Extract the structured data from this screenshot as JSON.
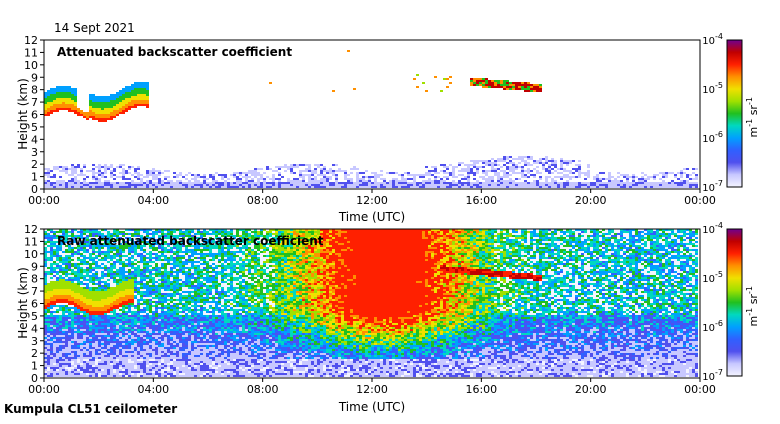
{
  "date_label": "14 Sept 2021",
  "footer": "Kumpula CL51 ceilometer",
  "colors": {
    "scale": [
      "#f4f4ff",
      "#c8c8ff",
      "#5050ee",
      "#3060ff",
      "#00a0ff",
      "#00d8c0",
      "#20c020",
      "#a0e000",
      "#f0e000",
      "#ff9000",
      "#ff2000",
      "#c00000",
      "#700090"
    ],
    "frame": "#000000",
    "background": "#ffffff"
  },
  "chart_data": [
    {
      "type": "heatmap",
      "title": "Attenuated backscatter coefficient",
      "xlabel": "Time (UTC)",
      "ylabel": "Height (km)",
      "x_ticks": [
        "00:00",
        "04:00",
        "08:00",
        "12:00",
        "16:00",
        "20:00",
        "00:00"
      ],
      "xlim_hours": [
        0,
        24
      ],
      "y_ticks": [
        0,
        1,
        2,
        3,
        4,
        5,
        6,
        7,
        8,
        9,
        10,
        11,
        12
      ],
      "ylim_km": [
        0,
        12
      ],
      "colorbar": {
        "labels": [
          {
            "base": "10",
            "exp": "-4"
          },
          {
            "base": "10",
            "exp": "-5"
          },
          {
            "base": "10",
            "exp": "-6"
          },
          {
            "base": "10",
            "exp": "-7"
          }
        ],
        "unit": {
          "m": "m",
          "m_exp": "-1",
          "sr": "sr",
          "sr_exp": "-1"
        },
        "range_log10": [
          -7,
          -4
        ]
      },
      "features": [
        {
          "name": "lower cloud layer",
          "start_h": 0.0,
          "end_h": 3.8,
          "base_km": 5.6,
          "top_km": 7.8
        },
        {
          "name": "upper cloud layer",
          "start_h": 14.0,
          "end_h": 18.2,
          "base_km": 7.9,
          "top_km": 8.8
        },
        {
          "name": "boundary layer",
          "start_h": 0.0,
          "end_h": 24.0,
          "top_km": 2.0
        }
      ]
    },
    {
      "type": "heatmap",
      "title": "Raw attenuated backscatter coefficient",
      "xlabel": "Time (UTC)",
      "ylabel": "Height (km)",
      "x_ticks": [
        "00:00",
        "04:00",
        "08:00",
        "12:00",
        "16:00",
        "20:00",
        "00:00"
      ],
      "xlim_hours": [
        0,
        24
      ],
      "y_ticks": [
        0,
        1,
        2,
        3,
        4,
        5,
        6,
        7,
        8,
        9,
        10,
        11,
        12
      ],
      "ylim_km": [
        0,
        12
      ],
      "colorbar": {
        "labels": [
          {
            "base": "10",
            "exp": "-4"
          },
          {
            "base": "10",
            "exp": "-5"
          },
          {
            "base": "10",
            "exp": "-6"
          },
          {
            "base": "10",
            "exp": "-7"
          }
        ],
        "unit": {
          "m": "m",
          "m_exp": "-1",
          "sr": "sr",
          "sr_exp": "-1"
        },
        "range_log10": [
          -7,
          -4
        ]
      },
      "features": [
        {
          "name": "lower cloud layer",
          "start_h": 0.0,
          "end_h": 3.3,
          "base_km": 5.4,
          "top_km": 7.6
        },
        {
          "name": "daytime noise",
          "start_h": 8.5,
          "end_h": 16.5,
          "base_km": 3.0,
          "top_km": 12.0
        },
        {
          "name": "upper cloud layer",
          "start_h": 14.5,
          "end_h": 18.2,
          "base_km": 7.9,
          "top_km": 8.7
        }
      ]
    }
  ]
}
